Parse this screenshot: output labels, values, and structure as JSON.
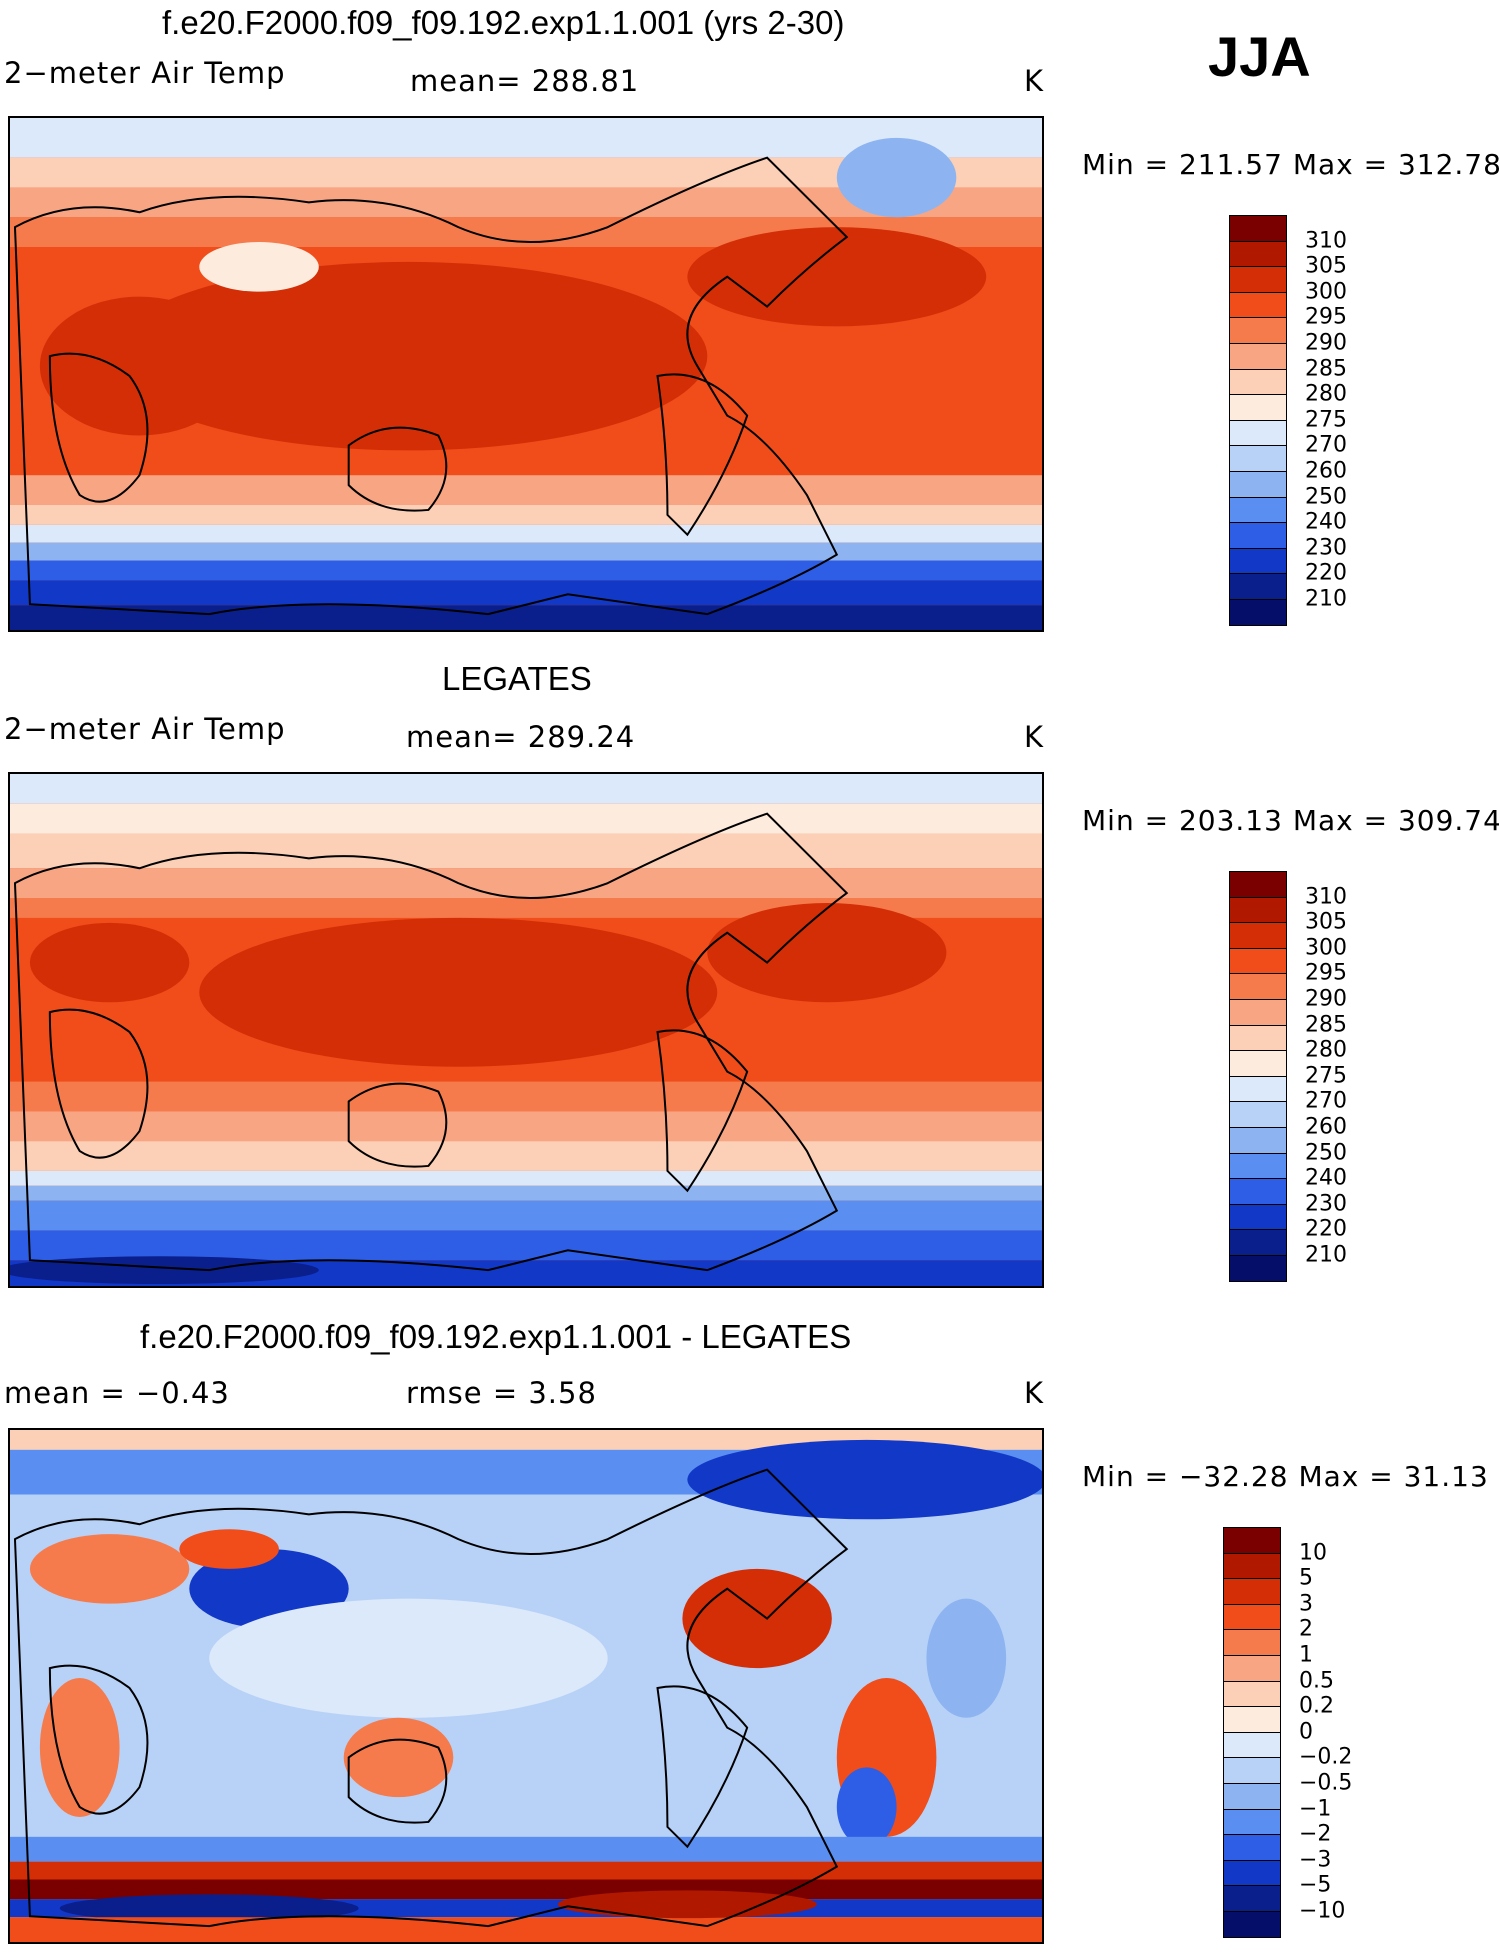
{
  "season": "JJA",
  "panels": [
    {
      "title": "f.e20.F2000.f09_f09.192.exp1.1.001 (yrs 2-30)",
      "left_label": "2−meter Air Temp",
      "center_label": "mean= 288.81",
      "units": "K",
      "minmax": "Min = 211.57 Max = 312.78",
      "colorbar_labels": [
        "310",
        "305",
        "300",
        "295",
        "290",
        "285",
        "280",
        "275",
        "270",
        "260",
        "250",
        "240",
        "230",
        "220",
        "210"
      ],
      "colorbar_colors": [
        "#7a0000",
        "#b01800",
        "#d42e06",
        "#f04d1a",
        "#f57b4d",
        "#f8a584",
        "#fbd0b6",
        "#fdebde",
        "#dce9fa",
        "#b8d2f7",
        "#8db4f0",
        "#5a8ef0",
        "#2e5ee6",
        "#1238c8",
        "#0a1f8c",
        "#050f6a"
      ]
    },
    {
      "title": "LEGATES",
      "left_label": "2−meter Air Temp",
      "center_label": "mean= 289.24",
      "units": "K",
      "minmax": "Min = 203.13 Max = 309.74",
      "colorbar_labels": [
        "310",
        "305",
        "300",
        "295",
        "290",
        "285",
        "280",
        "275",
        "270",
        "260",
        "250",
        "240",
        "230",
        "220",
        "210"
      ],
      "colorbar_colors": [
        "#7a0000",
        "#b01800",
        "#d42e06",
        "#f04d1a",
        "#f57b4d",
        "#f8a584",
        "#fbd0b6",
        "#fdebde",
        "#dce9fa",
        "#b8d2f7",
        "#8db4f0",
        "#5a8ef0",
        "#2e5ee6",
        "#1238c8",
        "#0a1f8c",
        "#050f6a"
      ]
    },
    {
      "title": "f.e20.F2000.f09_f09.192.exp1.1.001 - LEGATES",
      "left_label": "mean = −0.43",
      "center_label": "rmse = 3.58",
      "units": "K",
      "minmax": "Min = −32.28 Max = 31.13",
      "colorbar_labels": [
        "10",
        "5",
        "3",
        "2",
        "1",
        "0.5",
        "0.2",
        "0",
        "−0.2",
        "−0.5",
        "−1",
        "−2",
        "−3",
        "−5",
        "−10"
      ],
      "colorbar_colors": [
        "#7a0000",
        "#b01800",
        "#d42e06",
        "#f04d1a",
        "#f57b4d",
        "#f8a584",
        "#fbd0b6",
        "#fdebde",
        "#dce9fa",
        "#b8d2f7",
        "#8db4f0",
        "#5a8ef0",
        "#2e5ee6",
        "#1238c8",
        "#0a1f8c",
        "#050f6a"
      ]
    }
  ]
}
